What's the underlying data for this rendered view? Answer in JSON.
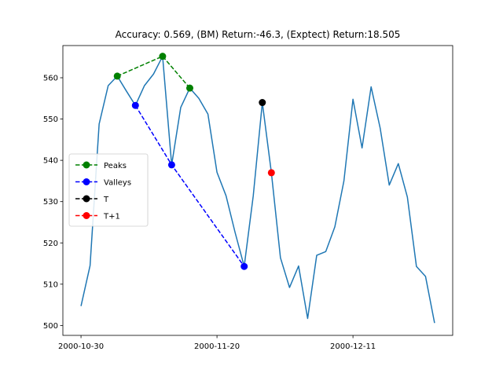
{
  "chart_data": {
    "type": "line",
    "title": "Accuracy: 0.569, (BM) Return:-46.3, (Exptect) Return:18.505",
    "xlabel": "",
    "ylabel": "",
    "x_tick_labels": [
      "2000-10-30",
      "2000-11-20",
      "2000-12-11"
    ],
    "x_tick_positions": [
      0,
      15,
      30
    ],
    "xlim": [
      -2,
      41
    ],
    "y_ticks": [
      500,
      510,
      520,
      530,
      540,
      550,
      560
    ],
    "ylim": [
      497.6,
      567.8
    ],
    "grid": false,
    "legend_position": "center-left",
    "series": [
      {
        "name": "",
        "color": "#1f77b4",
        "style": "solid",
        "x": [
          0,
          1,
          2,
          3,
          4,
          5,
          6,
          7,
          8,
          9,
          10,
          11,
          12,
          13,
          14,
          15,
          16,
          17,
          18,
          19,
          20,
          21,
          22,
          23,
          24,
          25,
          26,
          27,
          28,
          29,
          30,
          31,
          32,
          33,
          34,
          35,
          36,
          37,
          38,
          39
        ],
        "y": [
          504.7,
          514.5,
          548.8,
          558.1,
          560.4,
          556.8,
          553.3,
          558.1,
          560.9,
          565.2,
          538.9,
          552.8,
          557.5,
          555.0,
          551.2,
          537.1,
          531.4,
          522.5,
          514.3,
          531.4,
          554.0,
          537.0,
          516.4,
          509.2,
          514.4,
          501.7,
          517.0,
          517.9,
          523.9,
          535.0,
          554.8,
          543.0,
          557.8,
          547.8,
          534.0,
          539.2,
          531.1,
          514.3,
          511.9,
          500.6
        ]
      },
      {
        "name": "Peaks",
        "color": "#008000",
        "style": "dashed",
        "marker": "circle",
        "x": [
          4,
          9,
          12
        ],
        "y": [
          560.4,
          565.2,
          557.5
        ]
      },
      {
        "name": "Valleys",
        "color": "#0000ff",
        "style": "dashed",
        "marker": "circle",
        "x": [
          6,
          10,
          18
        ],
        "y": [
          553.3,
          538.9,
          514.3
        ]
      },
      {
        "name": "T",
        "color": "#000000",
        "style": "dashed",
        "marker": "circle",
        "x": [
          20
        ],
        "y": [
          554.0
        ]
      },
      {
        "name": "T+1",
        "color": "#ff0000",
        "style": "dashed",
        "marker": "circle",
        "x": [
          21
        ],
        "y": [
          537.0
        ]
      }
    ]
  }
}
